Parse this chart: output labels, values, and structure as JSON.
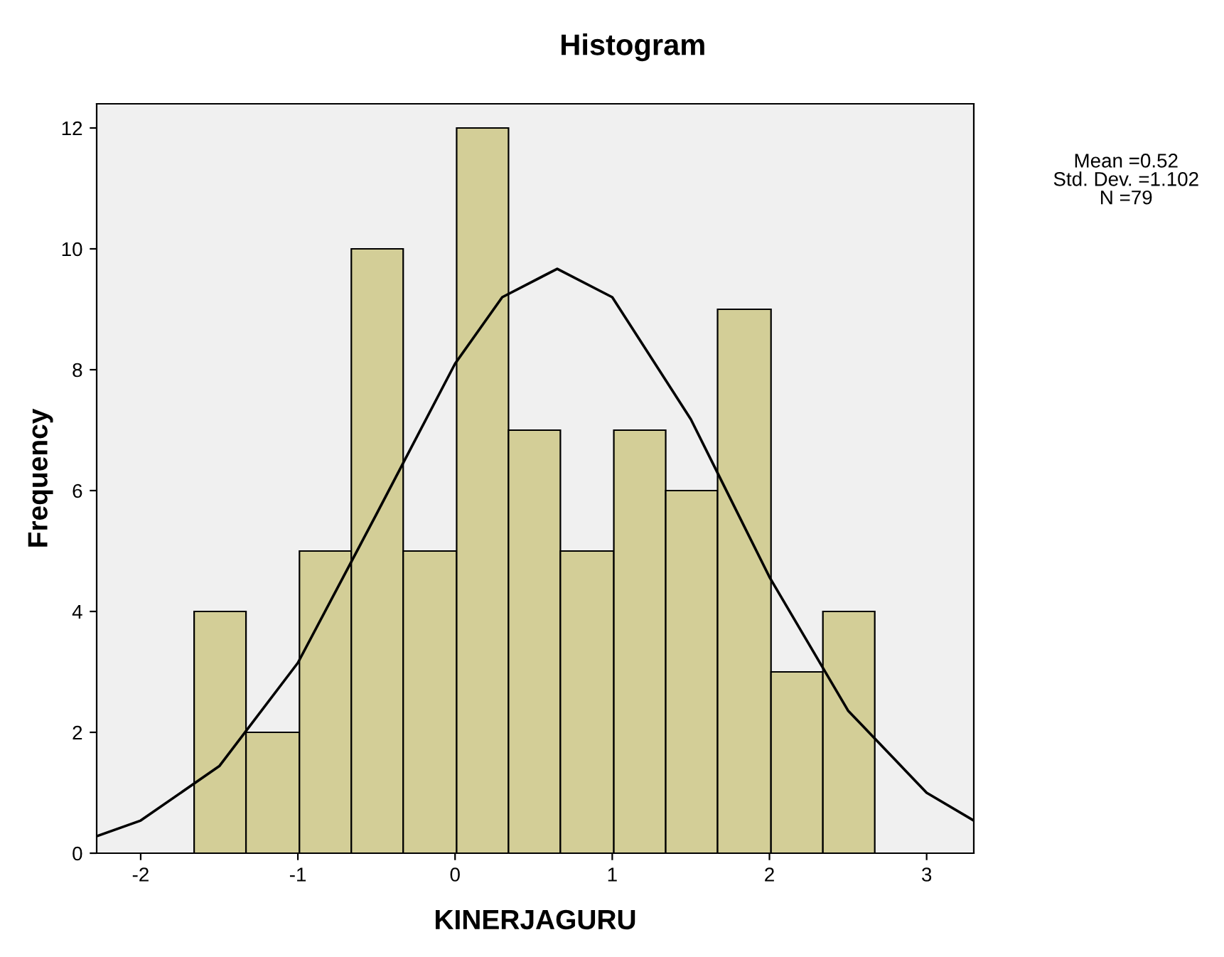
{
  "chart_data": {
    "type": "histogram",
    "title": "Histogram",
    "xlabel": "KINERJAGURU",
    "ylabel": "Frequency",
    "bins": [
      -1.66,
      -1.33,
      -0.99,
      -0.66,
      -0.33,
      0.01,
      0.34,
      0.67,
      1.01,
      1.34,
      1.67,
      2.01,
      2.34,
      2.67
    ],
    "values": [
      4,
      2,
      5,
      10,
      5,
      12,
      7,
      5,
      7,
      6,
      9,
      3,
      4
    ],
    "color": "#d3ce97",
    "series": [
      {
        "type": "line",
        "color": "#000000",
        "x": [
          -2.28,
          -2,
          -1.5,
          -1,
          -0.5,
          0,
          0.3,
          0.65,
          1,
          1.5,
          2,
          2.5,
          3,
          3.3
        ],
        "values": [
          0.28,
          0.54,
          1.44,
          3.15,
          5.61,
          8.1,
          9.2,
          9.67,
          9.2,
          7.18,
          4.57,
          2.36,
          1.0,
          0.54
        ]
      }
    ],
    "xlim": [
      -2.28,
      3.3
    ],
    "xticks": [
      -2,
      -1,
      0,
      1,
      2,
      3
    ],
    "ylim": [
      0,
      12.4
    ],
    "yticks": [
      0,
      2,
      4,
      6,
      8,
      10,
      12
    ],
    "grid": false,
    "annotations": [
      "Mean =0.52\nStd. Dev. =1.102\nN =79"
    ]
  }
}
